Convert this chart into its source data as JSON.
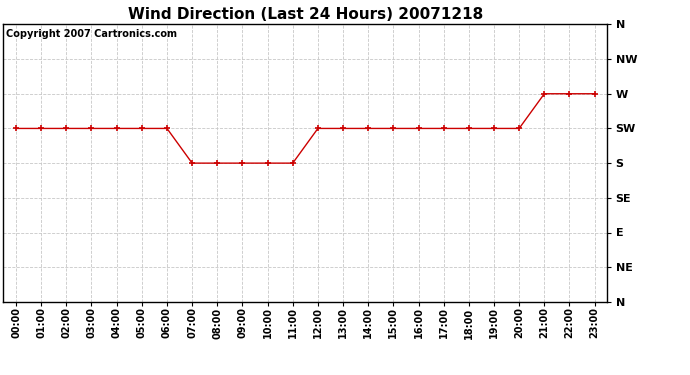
{
  "title": "Wind Direction (Last 24 Hours) 20071218",
  "copyright_text": "Copyright 2007 Cartronics.com",
  "background_color": "#ffffff",
  "plot_bg_color": "#ffffff",
  "line_color": "#cc0000",
  "marker_color": "#cc0000",
  "grid_color": "#c8c8c8",
  "x_labels": [
    "00:00",
    "01:00",
    "02:00",
    "03:00",
    "04:00",
    "05:00",
    "06:00",
    "07:00",
    "08:00",
    "09:00",
    "10:00",
    "11:00",
    "12:00",
    "13:00",
    "14:00",
    "15:00",
    "16:00",
    "17:00",
    "18:00",
    "19:00",
    "20:00",
    "21:00",
    "22:00",
    "23:00"
  ],
  "y_labels": [
    "N",
    "NW",
    "W",
    "SW",
    "S",
    "SE",
    "E",
    "NE",
    "N"
  ],
  "y_positions": [
    8,
    7,
    6,
    5,
    4,
    3,
    2,
    1,
    0
  ],
  "wind_data": {
    "00:00": 5,
    "01:00": 5,
    "02:00": 5,
    "03:00": 5,
    "04:00": 5,
    "05:00": 5,
    "06:00": 5,
    "07:00": 4,
    "08:00": 4,
    "09:00": 4,
    "10:00": 4,
    "11:00": 4,
    "12:00": 5,
    "13:00": 5,
    "14:00": 5,
    "15:00": 5,
    "16:00": 5,
    "17:00": 5,
    "18:00": 5,
    "19:00": 5,
    "20:00": 5,
    "21:00": 6,
    "22:00": 6,
    "23:00": 6
  },
  "figsize": [
    6.9,
    3.75
  ],
  "dpi": 100,
  "title_fontsize": 11,
  "copyright_fontsize": 7,
  "tick_fontsize": 7,
  "ytick_fontsize": 8
}
